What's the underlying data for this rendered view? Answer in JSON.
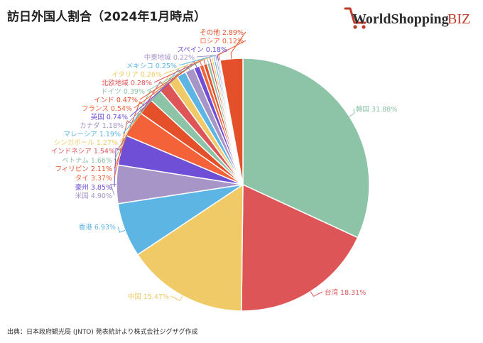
{
  "header": {
    "title": "訪日外国人割合（2024年1月時点）",
    "logo_text_main": "WorldShopping",
    "logo_text_suffix": "BIZ"
  },
  "footer": {
    "source": "出典：日本政府観光局 (JNTO) 発表統計より株式会社ジグザグ作成"
  },
  "colors": {
    "logo_red": "#c0392b",
    "logo_dark": "#2c2c2c"
  },
  "chart_data": {
    "type": "pie",
    "unit": "%",
    "start_angle_deg": 0,
    "direction": "clockwise",
    "slices": [
      {
        "label": "韓国",
        "value": 31.88,
        "color": "#8dc3a7"
      },
      {
        "label": "台湾",
        "value": 18.31,
        "color": "#dd5557"
      },
      {
        "label": "中国",
        "value": 15.47,
        "color": "#efca67"
      },
      {
        "label": "香港",
        "value": 6.93,
        "color": "#5cb5e3"
      },
      {
        "label": "米国",
        "value": 4.9,
        "color": "#a895c8"
      },
      {
        "label": "豪州",
        "value": 3.85,
        "color": "#6e4fd6"
      },
      {
        "label": "タイ",
        "value": 3.37,
        "color": "#f4623a"
      },
      {
        "label": "フィリピン",
        "value": 2.11,
        "color": "#e3502a"
      },
      {
        "label": "ベトナム",
        "value": 1.66,
        "color": "#8dc3a7"
      },
      {
        "label": "インドネシア",
        "value": 1.54,
        "color": "#dd5557"
      },
      {
        "label": "シンガポール",
        "value": 1.27,
        "color": "#efca67"
      },
      {
        "label": "マレーシア",
        "value": 1.19,
        "color": "#5cb5e3"
      },
      {
        "label": "カナダ",
        "value": 1.18,
        "color": "#a895c8"
      },
      {
        "label": "英国",
        "value": 0.74,
        "color": "#6e4fd6"
      },
      {
        "label": "フランス",
        "value": 0.54,
        "color": "#f4623a"
      },
      {
        "label": "インド",
        "value": 0.47,
        "color": "#e3502a"
      },
      {
        "label": "ドイツ",
        "value": 0.39,
        "color": "#8dc3a7"
      },
      {
        "label": "北欧地域",
        "value": 0.28,
        "color": "#dd5557"
      },
      {
        "label": "イタリア",
        "value": 0.26,
        "color": "#efca67"
      },
      {
        "label": "メキシコ",
        "value": 0.25,
        "color": "#5cb5e3"
      },
      {
        "label": "中東地域",
        "value": 0.22,
        "color": "#a895c8"
      },
      {
        "label": "スペイン",
        "value": 0.18,
        "color": "#6e4fd6"
      },
      {
        "label": "ロシア",
        "value": 0.12,
        "color": "#f4623a"
      },
      {
        "label": "その他",
        "value": 2.89,
        "color": "#e3502a"
      }
    ]
  }
}
